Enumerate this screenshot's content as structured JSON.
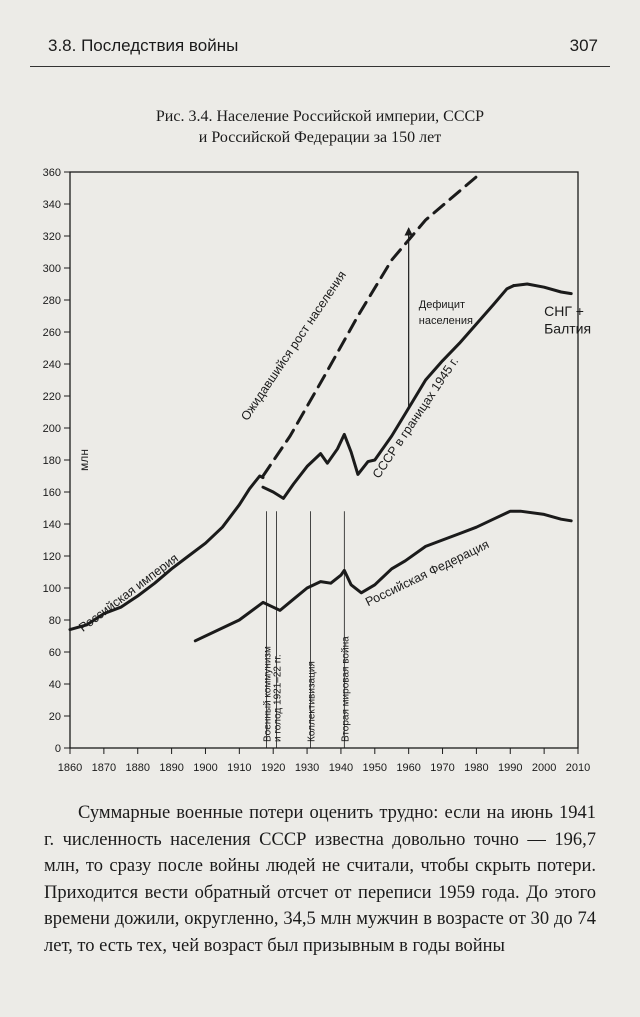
{
  "header": {
    "section": "3.8. Последствия войны",
    "page_number": "307"
  },
  "caption": {
    "line1": "Рис. 3.4. Население Российской империи, СССР",
    "line2": "и Российской Федерации за 150 лет"
  },
  "chart_data": {
    "type": "line",
    "title": "",
    "xlabel": "",
    "ylabel": "млн",
    "xlim": [
      1860,
      2010
    ],
    "ylim": [
      0,
      360
    ],
    "x_ticks": [
      1860,
      1870,
      1880,
      1890,
      1900,
      1910,
      1920,
      1930,
      1940,
      1950,
      1960,
      1970,
      1980,
      1990,
      2000,
      2010
    ],
    "y_ticks": [
      0,
      20,
      40,
      60,
      80,
      100,
      120,
      140,
      160,
      180,
      200,
      220,
      240,
      260,
      280,
      300,
      320,
      340,
      360
    ],
    "grid": false,
    "series": [
      {
        "name": "Российская империя",
        "style": "solid",
        "points": [
          [
            1860,
            74
          ],
          [
            1865,
            77
          ],
          [
            1870,
            84
          ],
          [
            1875,
            88
          ],
          [
            1880,
            95
          ],
          [
            1885,
            103
          ],
          [
            1890,
            112
          ],
          [
            1895,
            120
          ],
          [
            1900,
            128
          ],
          [
            1905,
            138
          ],
          [
            1910,
            152
          ],
          [
            1913,
            162
          ],
          [
            1916,
            170
          ],
          [
            1917,
            169
          ]
        ]
      },
      {
        "name": "Ожидавшийся рост населения",
        "style": "dashed",
        "points": [
          [
            1917,
            170
          ],
          [
            1925,
            195
          ],
          [
            1935,
            232
          ],
          [
            1945,
            270
          ],
          [
            1955,
            305
          ],
          [
            1965,
            330
          ],
          [
            1975,
            348
          ],
          [
            1980,
            357
          ]
        ]
      },
      {
        "name": "СССР в границах 1945 г.",
        "style": "solid",
        "points": [
          [
            1917,
            163
          ],
          [
            1920,
            160
          ],
          [
            1923,
            156
          ],
          [
            1926,
            165
          ],
          [
            1930,
            176
          ],
          [
            1934,
            184
          ],
          [
            1936,
            178
          ],
          [
            1939,
            187
          ],
          [
            1941,
            196
          ],
          [
            1943,
            185
          ],
          [
            1945,
            171
          ],
          [
            1948,
            179
          ],
          [
            1950,
            180
          ],
          [
            1955,
            195
          ],
          [
            1959,
            209
          ],
          [
            1965,
            230
          ],
          [
            1970,
            242
          ],
          [
            1975,
            253
          ],
          [
            1980,
            265
          ],
          [
            1985,
            277
          ],
          [
            1989,
            287
          ],
          [
            1991,
            289
          ]
        ]
      },
      {
        "name": "СНГ + Балтия",
        "style": "solid",
        "points": [
          [
            1991,
            289
          ],
          [
            1995,
            290
          ],
          [
            2000,
            288
          ],
          [
            2005,
            285
          ],
          [
            2008,
            284
          ]
        ]
      },
      {
        "name": "Российская Федерация",
        "style": "solid",
        "points": [
          [
            1897,
            67
          ],
          [
            1910,
            80
          ],
          [
            1917,
            91
          ],
          [
            1920,
            88
          ],
          [
            1922,
            86
          ],
          [
            1926,
            93
          ],
          [
            1930,
            100
          ],
          [
            1934,
            104
          ],
          [
            1937,
            103
          ],
          [
            1940,
            108
          ],
          [
            1941,
            111
          ],
          [
            1943,
            102
          ],
          [
            1946,
            97
          ],
          [
            1950,
            102
          ],
          [
            1955,
            112
          ],
          [
            1959,
            117
          ],
          [
            1965,
            126
          ],
          [
            1970,
            130
          ],
          [
            1975,
            134
          ],
          [
            1980,
            138
          ],
          [
            1985,
            143
          ],
          [
            1990,
            148
          ],
          [
            1993,
            148
          ],
          [
            2000,
            146
          ],
          [
            2005,
            143
          ],
          [
            2008,
            142
          ]
        ]
      }
    ],
    "events": [
      {
        "label": "и голод 1921–22 гг.",
        "x": 1921
      },
      {
        "label": "Военный коммунизм",
        "x": 1918
      },
      {
        "label": "Коллективизация",
        "x": 1931
      },
      {
        "label": "Вторая мировая война",
        "x": 1941
      }
    ],
    "annotations": [
      {
        "label": "Дефицит",
        "x": 1963,
        "y": 275
      },
      {
        "label": "населения",
        "x": 1963,
        "y": 265
      },
      {
        "label": "СНГ +",
        "x": 2000,
        "y": 270
      },
      {
        "label": "Балтия",
        "x": 2000,
        "y": 259
      },
      {
        "label": "Ожидавшийся рост населения",
        "x": 1927,
        "y": 250,
        "angle": -56
      },
      {
        "label": "СССР в границах 1945 г.",
        "x": 1963,
        "y": 205,
        "angle": -56
      },
      {
        "label": "Российская империя",
        "x": 1878,
        "y": 95,
        "angle": -37
      },
      {
        "label": "Российская Федерация",
        "x": 1966,
        "y": 107,
        "angle": -26
      }
    ],
    "deficit_arrow": {
      "x": 1960,
      "y_from": 212,
      "y_to": 325
    }
  },
  "body": {
    "paragraph": "Суммарные военные потери оценить трудно: если на июнь 1941 г. численность населения СССР известна довольно точно — 196,7 млн, то сразу после войны людей не считали, чтобы скрыть потери. Приходится вести обратный отсчет от переписи 1959 года. До этого времени дожили, округленно, 34,5 млн мужчин в возрасте от 30 до 74 лет, то есть тех, чей возраст был призывным в годы войны"
  }
}
